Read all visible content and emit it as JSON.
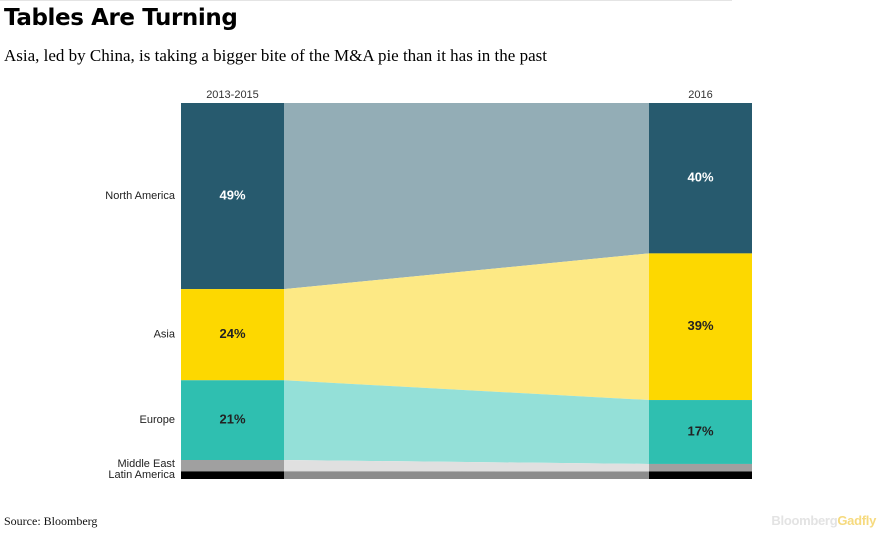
{
  "title": "Tables Are Turning",
  "subtitle": "Asia, led by China, is taking a bigger bite of the M&A pie than it has in the past",
  "source": "Source: Bloomberg",
  "logo": {
    "brand": "Bloomberg",
    "sub": "Gadfly"
  },
  "chart_data": {
    "type": "slope-stacked-bar",
    "columns": [
      "2013-2015",
      "2016"
    ],
    "regions": [
      {
        "name": "North America",
        "values": [
          49,
          40
        ],
        "labels": [
          "49%",
          "40%"
        ],
        "color": "#275a6e",
        "band": "#93adb6",
        "labelColor": "#ffffff"
      },
      {
        "name": "Asia",
        "values": [
          24,
          39
        ],
        "labels": [
          "24%",
          "39%"
        ],
        "color": "#fdd800",
        "band": "#fde985",
        "labelColor": "#222222"
      },
      {
        "name": "Europe",
        "values": [
          21,
          17
        ],
        "labels": [
          "21%",
          "17%"
        ],
        "color": "#2fbfb0",
        "band": "#94e0d8",
        "labelColor": "#222222"
      },
      {
        "name": "Middle East",
        "values": [
          3,
          2
        ],
        "labels": [
          "",
          ""
        ],
        "color": "#a0a0a0",
        "band": "#e0e0e0",
        "labelColor": "#222222"
      },
      {
        "name": "Latin America",
        "values": [
          2,
          2
        ],
        "labels": [
          "",
          ""
        ],
        "color": "#000000",
        "band": "#8c8c8c",
        "labelColor": "#ffffff"
      }
    ],
    "ylim": [
      0,
      100
    ]
  }
}
